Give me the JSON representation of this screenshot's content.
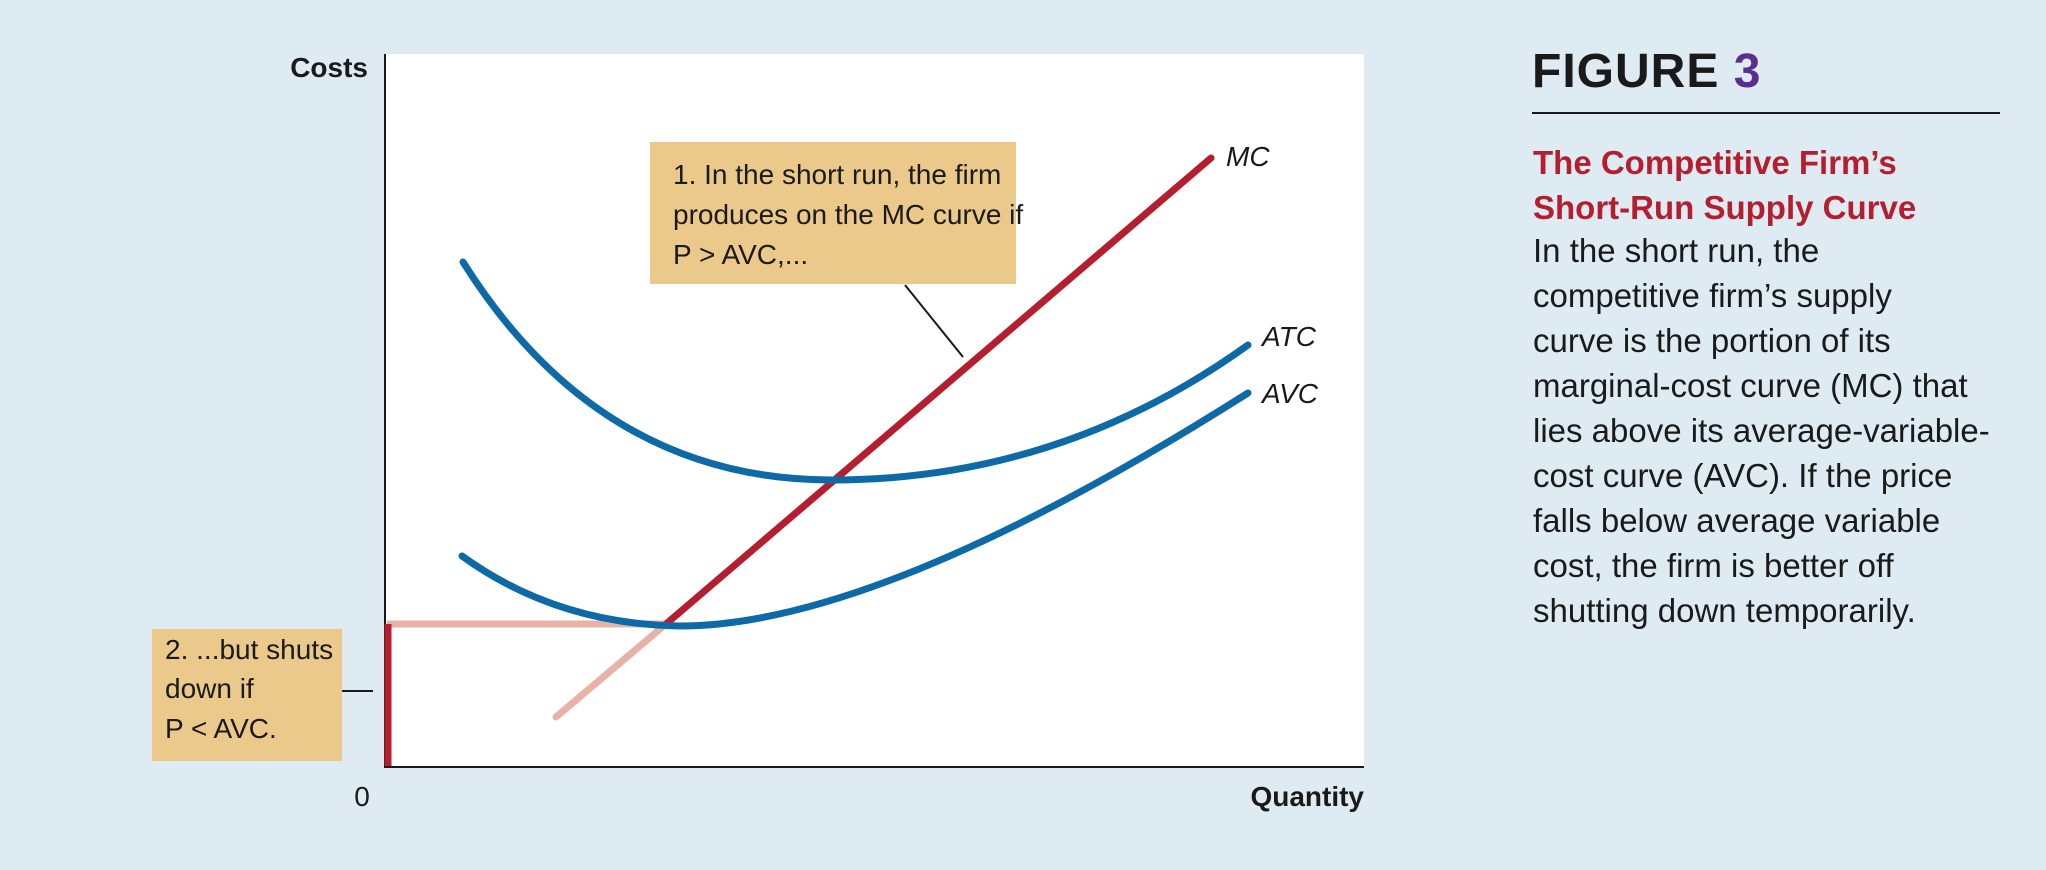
{
  "figure": {
    "label": "FIGURE",
    "number": "3",
    "title_lines": [
      "The Competitive Firm’s",
      "Short-Run Supply Curve"
    ],
    "text_lines": [
      "In the short run, the",
      "competitive firm’s supply",
      "curve is the portion of its",
      "marginal-cost curve (MC) that",
      "lies above its average-variable-",
      "cost curve (AVC). If the price",
      "falls below average variable",
      "cost, the firm is better off",
      "shutting down temporarily."
    ]
  },
  "graph": {
    "y_axis_label": "Costs",
    "x_axis_label": "Quantity",
    "origin_label": "0",
    "curve_labels": {
      "mc": "MC",
      "atc": "ATC",
      "avc": "AVC"
    },
    "annotation_1": [
      "1. In the short run, the firm",
      "produces on the MC curve if",
      "P > AVC,..."
    ],
    "annotation_2": [
      "2. ...but shuts",
      "down if",
      "P < AVC."
    ]
  },
  "colors": {
    "background": "#deebf2",
    "plot_area": "#ffffff",
    "mc_curve": "#b41e2e",
    "mc_curve_below": "#e8b2a6",
    "cost_curves": "#0d6aa6",
    "annotation_box": "#ebc98a",
    "accent_title": "#b41e2e",
    "figure_number": "#5b2d8e"
  }
}
